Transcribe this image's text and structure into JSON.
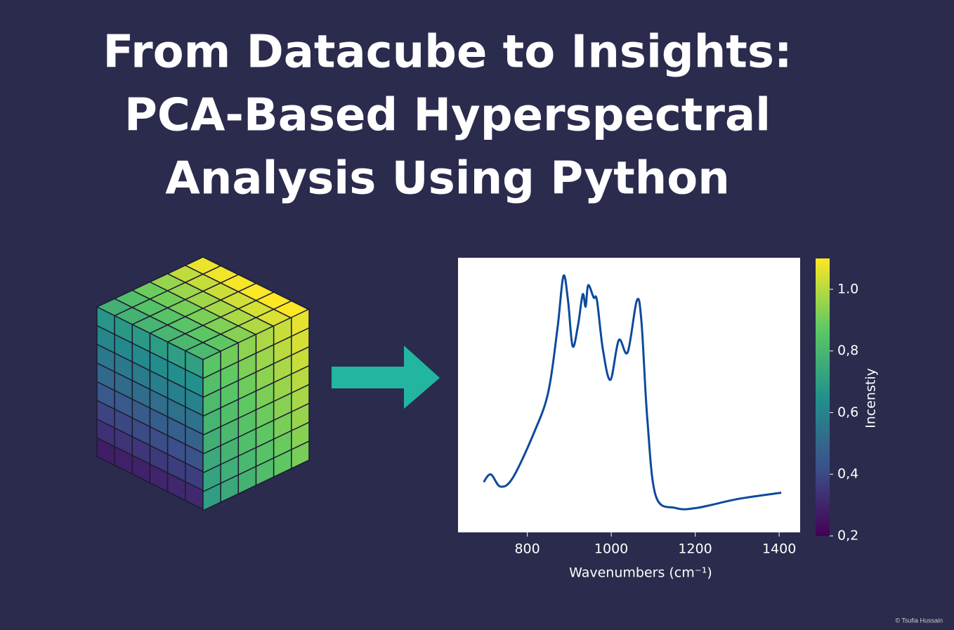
{
  "title": [
    "From Datacube to Insights:",
    "PCA-Based Hyperspectral",
    "Analysis Using Python"
  ],
  "credit": "© Tsufia Hussain",
  "chart_data": {
    "type": "line",
    "x": [
      696,
      713,
      736,
      766,
      817,
      850,
      872,
      886,
      897,
      908,
      921,
      932,
      939,
      945,
      958,
      966,
      980,
      998,
      1018,
      1039,
      1061,
      1072,
      1086,
      1106,
      1153,
      1203,
      1304,
      1405
    ],
    "series": [
      {
        "color": "#0d4a9c",
        "values": [
          0.365,
          0.39,
          0.35,
          0.38,
          0.53,
          0.66,
          0.87,
          1.04,
          0.96,
          0.81,
          0.88,
          0.98,
          0.94,
          1.01,
          0.97,
          0.96,
          0.8,
          0.7,
          0.83,
          0.79,
          0.96,
          0.89,
          0.57,
          0.32,
          0.28,
          0.28,
          0.31,
          0.33
        ]
      }
    ],
    "xlabel": "Wavenumbers (cm⁻¹)",
    "xlim": [
      635,
      1450
    ],
    "xticks": [
      800,
      1000,
      1200,
      1400
    ],
    "ylim": [
      0.2,
      1.1
    ],
    "colorbar": {
      "label": "Incenstiy",
      "lim": [
        0.2,
        1.1
      ],
      "ticks": [
        {
          "value": 0.2,
          "label": "0,2"
        },
        {
          "value": 0.4,
          "label": "0,4"
        },
        {
          "value": 0.6,
          "label": "0,6"
        },
        {
          "value": 0.8,
          "label": "0,8"
        },
        {
          "value": 1.0,
          "label": "1.0"
        }
      ]
    }
  }
}
